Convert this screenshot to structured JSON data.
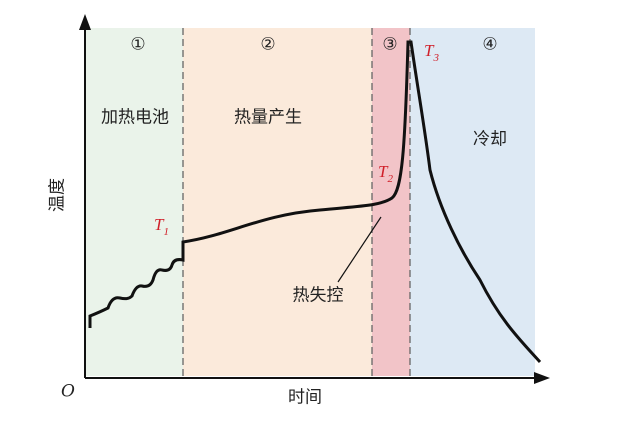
{
  "axes": {
    "y_label": "温度",
    "x_label": "时间",
    "origin": "O"
  },
  "regions": [
    {
      "number": "①",
      "label": "加热电池"
    },
    {
      "number": "②",
      "label": "热量产生"
    },
    {
      "number": "③"
    },
    {
      "number": "④",
      "label": "冷却"
    }
  ],
  "points": [
    {
      "main": "T",
      "sub": "1"
    },
    {
      "main": "T",
      "sub": "2"
    },
    {
      "main": "T",
      "sub": "3"
    }
  ],
  "annotation": "热失控"
}
